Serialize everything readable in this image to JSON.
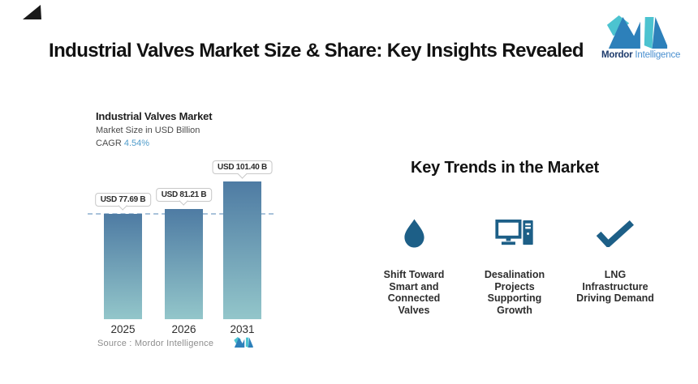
{
  "page": {
    "title": "Industrial Valves Market Size & Share: Key Insights Revealed"
  },
  "brand": {
    "wordmark_primary": "Mordor",
    "wordmark_secondary": "Intelligence",
    "logo_teal": "#4cc3d0",
    "logo_blue": "#2d80ba"
  },
  "chart_data": {
    "type": "bar",
    "title": "Industrial Valves Market",
    "subtitle": "Market Size in USD Billion",
    "cagr_label": "CAGR",
    "cagr_value": "4.54%",
    "categories": [
      "2025",
      "2026",
      "2031"
    ],
    "values": [
      77.69,
      81.21,
      101.4
    ],
    "value_labels": [
      "USD 77.69 B",
      "USD 81.21 B",
      "USD 101.40 B"
    ],
    "reference_line_value": 77.69,
    "ylim": [
      0,
      110
    ],
    "grid": false,
    "bar_color_top": "#4e7ba3",
    "bar_color_bottom": "#93c6ca",
    "dashed_line_color": "#a9c2da",
    "source": "Source :  Mordor Intelligence"
  },
  "trends": {
    "heading": "Key Trends in the Market",
    "icon_color": "#1d5f87",
    "items": [
      {
        "icon": "water-drop-icon",
        "label": "Shift Toward\nSmart and\nConnected\nValves"
      },
      {
        "icon": "desktop-computer-icon",
        "label": "Desalination\nProjects\nSupporting\nGrowth"
      },
      {
        "icon": "checkmark-icon",
        "label": "LNG\nInfrastructure\nDriving Demand"
      }
    ]
  }
}
